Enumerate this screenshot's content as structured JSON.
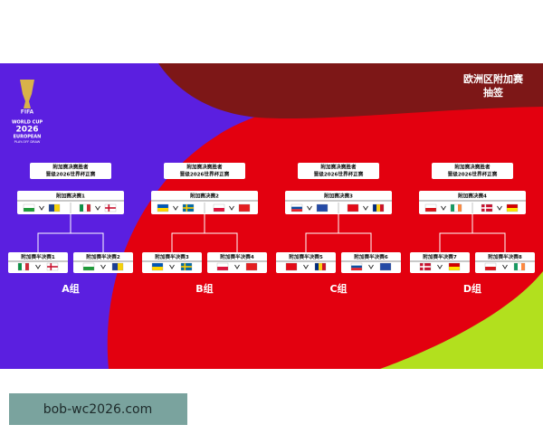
{
  "header": {
    "title": "欧洲区附加赛",
    "subtitle": "抽签"
  },
  "logo": {
    "brand": "FIFA",
    "line1": "WORLD CUP",
    "year": "2026",
    "line2": "EUROPEAN",
    "line3": "PLAY-OFF DRAW"
  },
  "groups": [
    {
      "winner": [
        "附加赛决赛胜者",
        "晋级2026世界杯正赛"
      ],
      "final": "附加赛决赛1",
      "semis": [
        "附加赛半决赛1",
        "附加赛半决赛2"
      ],
      "label": "A组"
    },
    {
      "winner": [
        "附加赛决赛胜者",
        "晋级2026世界杯正赛"
      ],
      "final": "附加赛决赛2",
      "semis": [
        "附加赛半决赛3",
        "附加赛半决赛4"
      ],
      "label": "B组"
    },
    {
      "winner": [
        "附加赛决赛胜者",
        "晋级2026世界杯正赛"
      ],
      "final": "附加赛决赛3",
      "semis": [
        "附加赛半决赛5",
        "附加赛半决赛6"
      ],
      "label": "C组"
    },
    {
      "winner": [
        "附加赛决赛胜者",
        "晋级2026世界杯正赛"
      ],
      "final": "附加赛决赛4",
      "semis": [
        "附加赛半决赛7",
        "附加赛半决赛8"
      ],
      "label": "D组"
    }
  ],
  "watermark": "bob-wc2026.com"
}
